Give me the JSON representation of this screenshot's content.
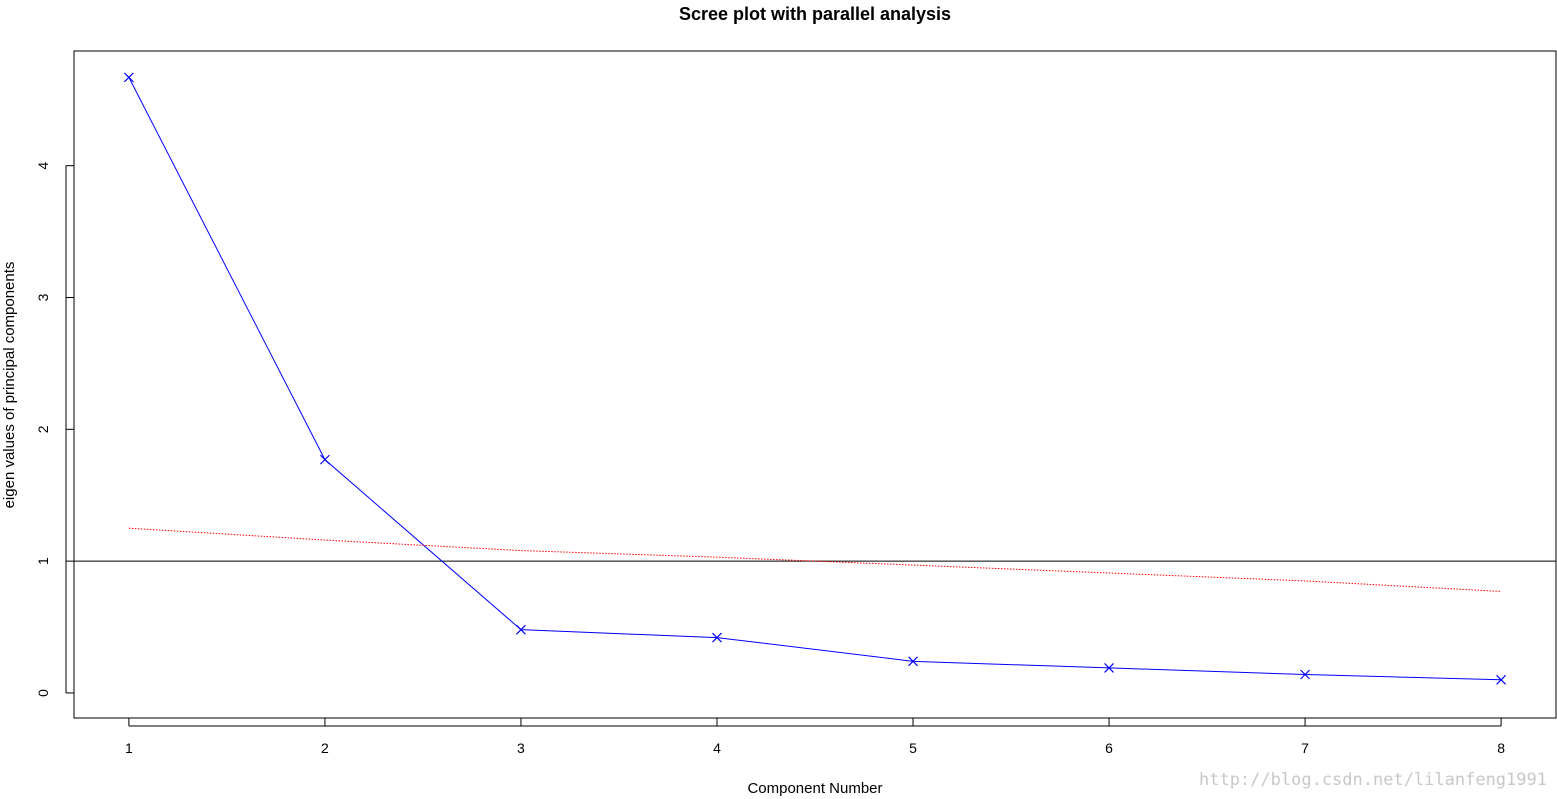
{
  "chart_data": {
    "type": "line",
    "title": "Scree plot with parallel analysis",
    "xlabel": "Component Number",
    "ylabel": "eigen values of principal components",
    "x": [
      1,
      2,
      3,
      4,
      5,
      6,
      7,
      8
    ],
    "xlim": [
      0.72,
      8.28
    ],
    "ylim": [
      -0.19,
      4.87
    ],
    "xticks": [
      "1",
      "2",
      "3",
      "4",
      "5",
      "6",
      "7",
      "8"
    ],
    "yticks": [
      "0",
      "1",
      "2",
      "3",
      "4"
    ],
    "series": [
      {
        "color": "#0000ff",
        "line_style": "solid",
        "marker": "x",
        "values": [
          4.67,
          1.77,
          0.48,
          0.42,
          0.24,
          0.19,
          0.14,
          0.1
        ]
      },
      {
        "color": "#ff0000",
        "line_style": "dotted",
        "marker": "none",
        "values": [
          1.25,
          1.16,
          1.08,
          1.03,
          0.97,
          0.91,
          0.85,
          0.77
        ]
      }
    ],
    "reference_line": {
      "y": 1,
      "color": "#000000"
    },
    "grid": false,
    "legend": "none"
  },
  "watermark": "http://blog.csdn.net/lilanfeng1991"
}
